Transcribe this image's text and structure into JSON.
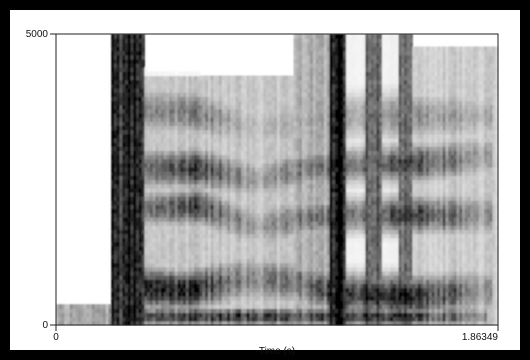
{
  "chart_data": {
    "type": "heatmap",
    "title": "",
    "subtitle": "",
    "xlabel": "Time (s)",
    "ylabel": "",
    "xlim": [
      0,
      1.86349
    ],
    "ylim": [
      0,
      5000
    ],
    "x_tick_labels": [
      "0",
      "1.86349"
    ],
    "y_tick_labels": [
      "0",
      "5000"
    ],
    "grid": false,
    "legend": "none",
    "colors": {
      "outer_background": "#000000",
      "panel_background": "#ffffff",
      "ink": "#000000",
      "frame": "#222222"
    },
    "formant_bands": [
      {
        "name": "",
        "points": [
          {
            "t": 0.37,
            "f": 150,
            "strength": 0.72,
            "bw": 150
          },
          {
            "t": 0.8,
            "f": 150,
            "strength": 0.8,
            "bw": 150
          },
          {
            "t": 0.99,
            "f": 150,
            "strength": 0.72,
            "bw": 160
          },
          {
            "t": 1.33,
            "f": 150,
            "strength": 0.8,
            "bw": 150
          },
          {
            "t": 1.52,
            "f": 150,
            "strength": 0.78,
            "bw": 150
          },
          {
            "t": 1.78,
            "f": 150,
            "strength": 0.45,
            "bw": 180
          }
        ]
      },
      {
        "name": "",
        "points": [
          {
            "t": 0.37,
            "f": 650,
            "strength": 0.85,
            "bw": 360
          },
          {
            "t": 0.55,
            "f": 600,
            "strength": 0.9,
            "bw": 320
          },
          {
            "t": 0.8,
            "f": 800,
            "strength": 0.45,
            "bw": 420
          },
          {
            "t": 1.0,
            "f": 750,
            "strength": 0.55,
            "bw": 380
          },
          {
            "t": 1.2,
            "f": 550,
            "strength": 0.8,
            "bw": 330
          },
          {
            "t": 1.55,
            "f": 500,
            "strength": 0.85,
            "bw": 350
          },
          {
            "t": 1.8,
            "f": 600,
            "strength": 0.4,
            "bw": 400
          }
        ]
      },
      {
        "name": "",
        "points": [
          {
            "t": 0.37,
            "f": 2000,
            "strength": 0.55,
            "bw": 300
          },
          {
            "t": 0.6,
            "f": 2050,
            "strength": 0.7,
            "bw": 320
          },
          {
            "t": 0.85,
            "f": 1700,
            "strength": 0.35,
            "bw": 380
          },
          {
            "t": 1.05,
            "f": 1850,
            "strength": 0.55,
            "bw": 330
          },
          {
            "t": 1.25,
            "f": 1900,
            "strength": 0.55,
            "bw": 300
          },
          {
            "t": 1.55,
            "f": 1900,
            "strength": 0.75,
            "bw": 320
          },
          {
            "t": 1.8,
            "f": 1900,
            "strength": 0.4,
            "bw": 380
          }
        ]
      },
      {
        "name": "",
        "points": [
          {
            "t": 0.37,
            "f": 2700,
            "strength": 0.55,
            "bw": 350
          },
          {
            "t": 0.6,
            "f": 2700,
            "strength": 0.75,
            "bw": 330
          },
          {
            "t": 0.85,
            "f": 2500,
            "strength": 0.35,
            "bw": 380
          },
          {
            "t": 1.05,
            "f": 2700,
            "strength": 0.55,
            "bw": 330
          },
          {
            "t": 1.25,
            "f": 2750,
            "strength": 0.55,
            "bw": 300
          },
          {
            "t": 1.55,
            "f": 2800,
            "strength": 0.7,
            "bw": 330
          },
          {
            "t": 1.8,
            "f": 2900,
            "strength": 0.35,
            "bw": 380
          }
        ]
      },
      {
        "name": "",
        "points": [
          {
            "t": 0.37,
            "f": 3700,
            "strength": 0.45,
            "bw": 420
          },
          {
            "t": 0.6,
            "f": 3650,
            "strength": 0.5,
            "bw": 400
          },
          {
            "t": 0.85,
            "f": 3400,
            "strength": 0.25,
            "bw": 450
          },
          {
            "t": 1.05,
            "f": 3500,
            "strength": 0.35,
            "bw": 420
          },
          {
            "t": 1.25,
            "f": 3600,
            "strength": 0.35,
            "bw": 400
          },
          {
            "t": 1.55,
            "f": 3600,
            "strength": 0.45,
            "bw": 420
          },
          {
            "t": 1.8,
            "f": 3600,
            "strength": 0.3,
            "bw": 450
          }
        ]
      }
    ],
    "energy_regions": [
      {
        "t0": 0.0,
        "t1": 0.23,
        "f0": 0,
        "f1": 350,
        "strength": 0.35
      },
      {
        "t0": 0.23,
        "t1": 0.37,
        "f0": 0,
        "f1": 5000,
        "strength": 0.85
      },
      {
        "t0": 0.37,
        "t1": 1.0,
        "f0": 0,
        "f1": 4300,
        "strength": 0.22
      },
      {
        "t0": 1.0,
        "t1": 1.15,
        "f0": 0,
        "f1": 5000,
        "strength": 0.32
      },
      {
        "t0": 1.15,
        "t1": 1.22,
        "f0": 0,
        "f1": 5000,
        "strength": 0.92
      },
      {
        "t0": 1.22,
        "t1": 1.31,
        "f0": 0,
        "f1": 5000,
        "strength": 0.05
      },
      {
        "t0": 1.31,
        "t1": 1.37,
        "f0": 0,
        "f1": 5000,
        "strength": 0.55
      },
      {
        "t0": 1.37,
        "t1": 1.44,
        "f0": 0,
        "f1": 5000,
        "strength": 0.05
      },
      {
        "t0": 1.44,
        "t1": 1.5,
        "f0": 0,
        "f1": 5000,
        "strength": 0.5
      },
      {
        "t0": 1.5,
        "t1": 1.86,
        "f0": 0,
        "f1": 4800,
        "strength": 0.2
      }
    ]
  }
}
